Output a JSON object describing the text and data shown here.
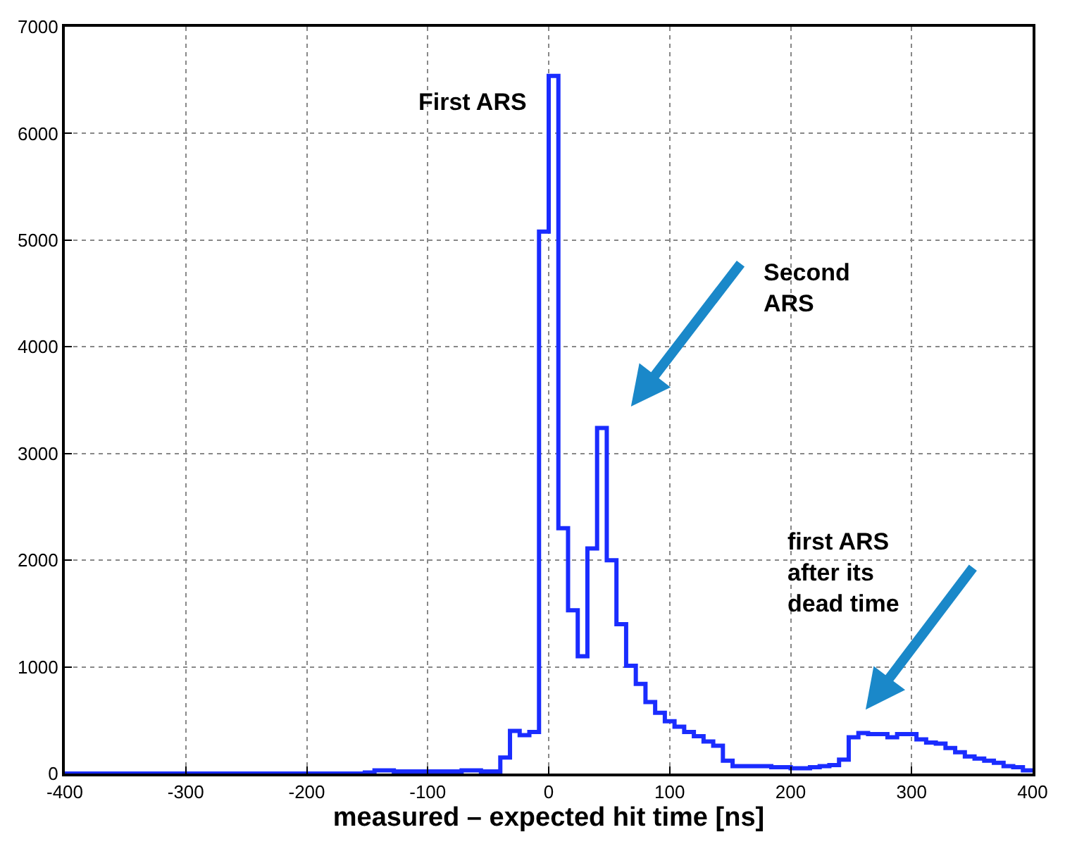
{
  "chart_data": {
    "type": "histogram",
    "xlabel": "measured – expected hit time [ns]",
    "bins": [
      -400,
      -392,
      -384,
      -376,
      -368,
      -360,
      -352,
      -344,
      -336,
      -328,
      -320,
      -312,
      -304,
      -296,
      -288,
      -280,
      -272,
      -264,
      -256,
      -248,
      -240,
      -232,
      -224,
      -216,
      -208,
      -200,
      -192,
      -184,
      -176,
      -168,
      -160,
      -152,
      -144,
      -136,
      -128,
      -120,
      -112,
      -104,
      -96,
      -88,
      -80,
      -72,
      -64,
      -56,
      -48,
      -40,
      -32,
      -24,
      -16,
      -8,
      0,
      8,
      16,
      24,
      32,
      40,
      48,
      56,
      64,
      72,
      80,
      88,
      96,
      104,
      112,
      120,
      128,
      136,
      144,
      152,
      160,
      168,
      176,
      184,
      192,
      200,
      208,
      216,
      224,
      232,
      240,
      248,
      256,
      264,
      272,
      280,
      288,
      296,
      304,
      312,
      320,
      328,
      336,
      344,
      352,
      360,
      368,
      376,
      384,
      392,
      400
    ],
    "values": [
      0,
      0,
      0,
      0,
      0,
      0,
      0,
      0,
      0,
      0,
      0,
      0,
      0,
      0,
      0,
      0,
      0,
      0,
      0,
      0,
      0,
      0,
      0,
      0,
      0,
      0,
      0,
      0,
      0,
      0,
      0,
      10,
      30,
      30,
      20,
      20,
      20,
      20,
      20,
      20,
      20,
      30,
      30,
      20,
      20,
      150,
      400,
      360,
      390,
      5080,
      6540,
      2300,
      1530,
      1100,
      2110,
      3240,
      2000,
      1400,
      1010,
      840,
      670,
      570,
      490,
      440,
      390,
      350,
      300,
      260,
      120,
      70,
      70,
      70,
      70,
      60,
      60,
      50,
      50,
      60,
      70,
      80,
      130,
      340,
      380,
      370,
      370,
      340,
      370,
      370,
      320,
      290,
      280,
      240,
      200,
      160,
      140,
      120,
      100,
      70,
      60,
      30
    ],
    "color": "#1a2cff",
    "xlim": [
      -400,
      400
    ],
    "xticks": [
      -400,
      -300,
      -200,
      -100,
      0,
      100,
      200,
      300,
      400
    ],
    "ylim": [
      0,
      7000
    ],
    "yticks": [
      0,
      1000,
      2000,
      3000,
      4000,
      5000,
      6000,
      7000
    ],
    "grid": true,
    "annotations": [
      "First ARS",
      "Second\nARS",
      "first ARS\nafter its\ndead time"
    ]
  }
}
